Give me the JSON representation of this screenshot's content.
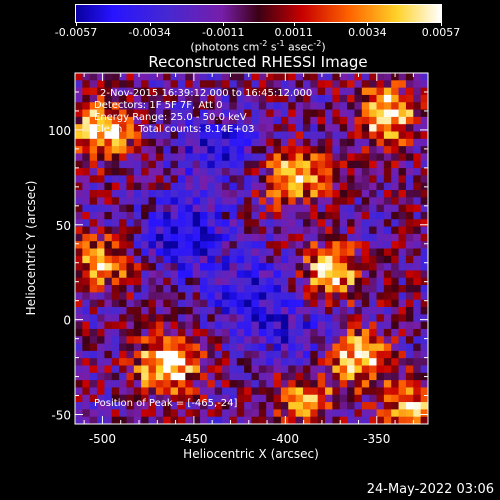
{
  "colorbar": {
    "tick_labels": [
      "-0.0057",
      "-0.0034",
      "-0.0011",
      "0.0011",
      "0.0034",
      "0.0057"
    ],
    "range": [
      -0.0057,
      0.0057
    ],
    "units_prefix": "(photons cm",
    "units_exp1": "-2",
    "units_mid1": " s",
    "units_exp2": "-1",
    "units_mid2": " asec",
    "units_exp3": "-2",
    "units_suffix": ")"
  },
  "chart_data": {
    "type": "heatmap",
    "title": "Reconstructed RHESSI Image",
    "xlabel": "Heliocentric X (arcsec)",
    "ylabel": "Heliocentric Y (arcsec)",
    "xlim": [
      -515,
      -322
    ],
    "ylim": [
      -55,
      130
    ],
    "x_ticks": [
      -500,
      -450,
      -400,
      -350
    ],
    "y_ticks": [
      -50,
      0,
      50,
      100
    ],
    "x_tick_labels": [
      "-500",
      "-450",
      "-400",
      "-350"
    ],
    "y_tick_labels": [
      "-50",
      "0",
      "50",
      "100"
    ],
    "colormap": "rainbow-to-hot",
    "grid": false,
    "hot_regions": [
      {
        "x": -465,
        "y": -24,
        "intensity": 1.0
      },
      {
        "x": -500,
        "y": 100,
        "intensity": 0.9
      },
      {
        "x": -345,
        "y": 108,
        "intensity": 0.9
      },
      {
        "x": -360,
        "y": -20,
        "intensity": 0.85
      },
      {
        "x": -395,
        "y": 75,
        "intensity": 0.8
      },
      {
        "x": -375,
        "y": 25,
        "intensity": 0.8
      },
      {
        "x": -500,
        "y": 30,
        "intensity": 0.65
      },
      {
        "x": -330,
        "y": -45,
        "intensity": 0.65
      },
      {
        "x": -390,
        "y": -40,
        "intensity": 0.6
      }
    ],
    "cold_regions": [
      {
        "x": -455,
        "y": 45,
        "intensity": 0.9
      },
      {
        "x": -420,
        "y": 15,
        "intensity": 0.7
      },
      {
        "x": -440,
        "y": 90,
        "intensity": 0.6
      },
      {
        "x": -395,
        "y": -10,
        "intensity": 0.55
      }
    ],
    "annotations": [
      "2-Nov-2015 16:39:12.000 to 16:45:12.000",
      "Detectors: 1F 5F 7F, Att 0",
      "Energy Range: 25.0 - 50.0 keV",
      "Clean     Total counts: 8.14E+03"
    ],
    "peak_annotation": "Position of Peak = [-465,-24]"
  },
  "footer": {
    "timestamp": "24-May-2022 03:06"
  }
}
